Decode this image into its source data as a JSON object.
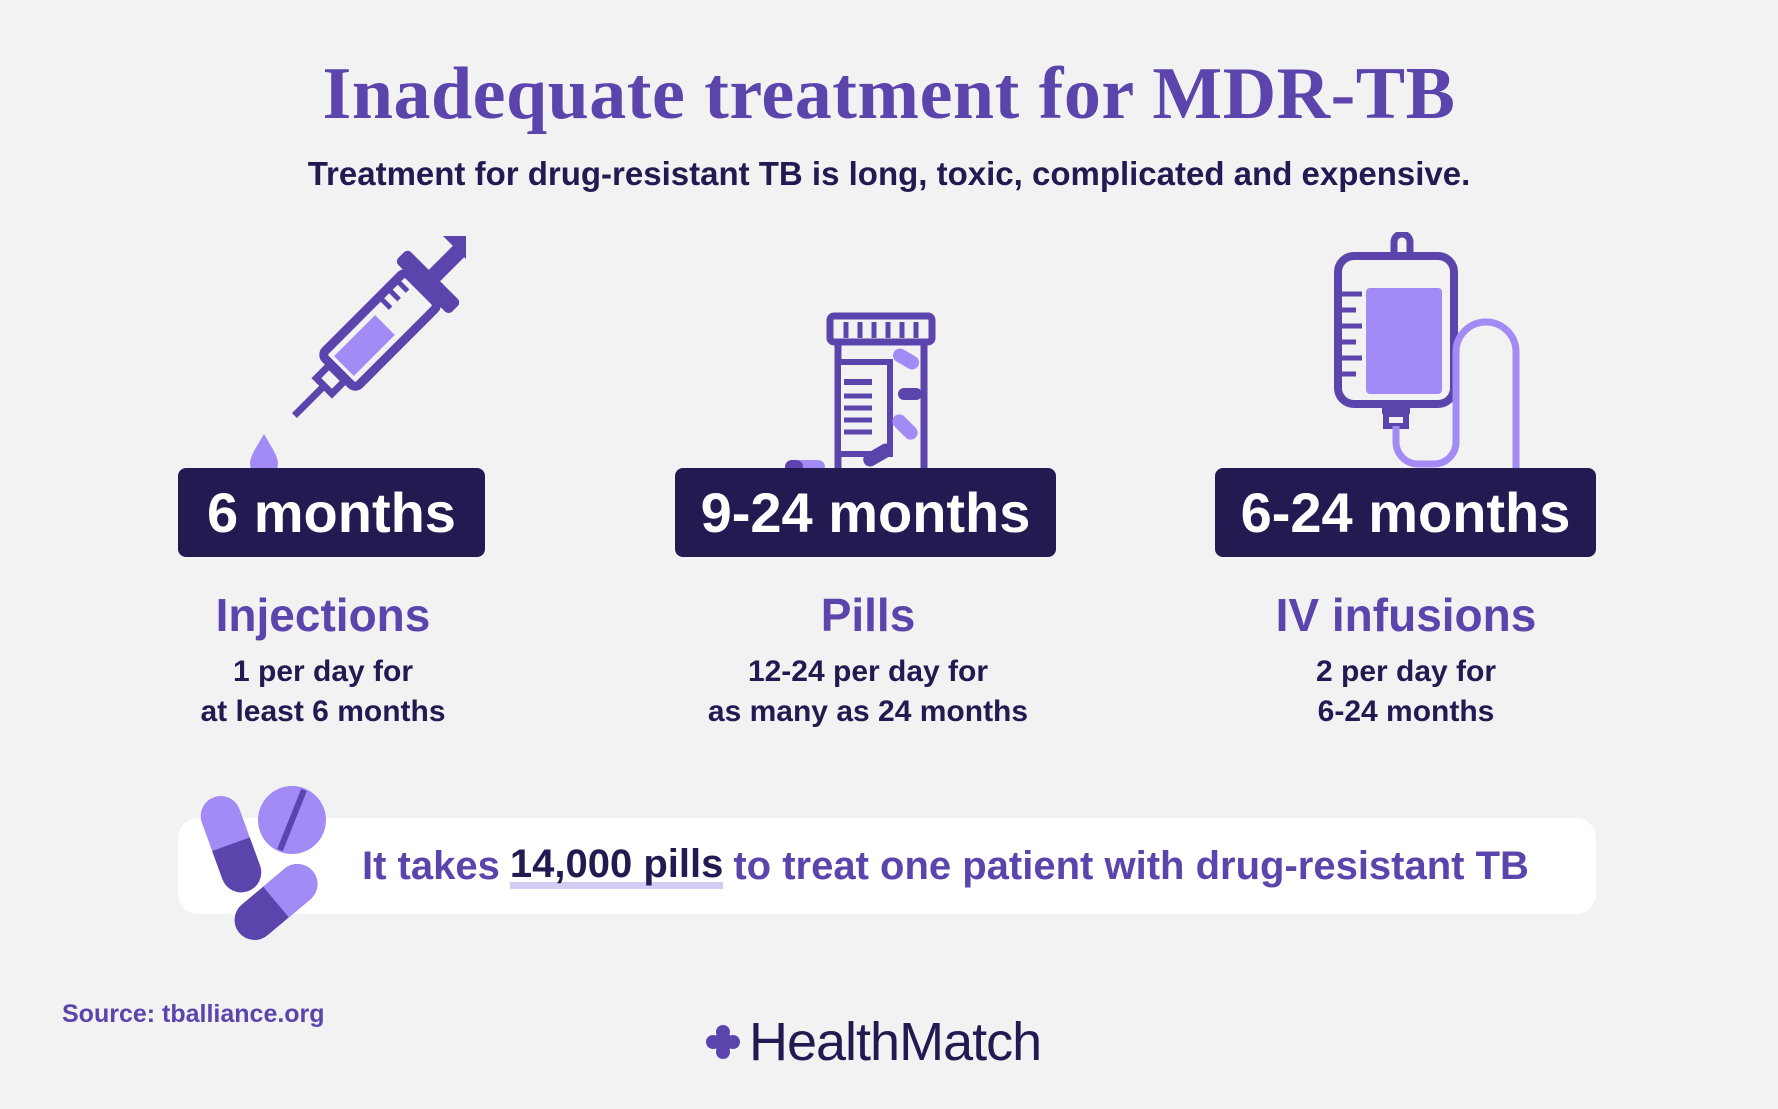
{
  "header": {
    "title": "Inadequate treatment for MDR-TB",
    "subtitle": "Treatment for drug-resistant TB is long, toxic, complicated and expensive."
  },
  "treatments": [
    {
      "icon": "syringe-icon",
      "duration": "6 months",
      "name": "Injections",
      "desc_line1": "1 per day for",
      "desc_line2": "at least 6 months"
    },
    {
      "icon": "pill-bottle-icon",
      "duration": "9-24 months",
      "name": "Pills",
      "desc_line1": "12-24 per day for",
      "desc_line2": "as many as 24 months"
    },
    {
      "icon": "iv-bag-icon",
      "duration": "6-24 months",
      "name": "IV infusions",
      "desc_line1": "2 per day for",
      "desc_line2": "6-24 months"
    }
  ],
  "banner": {
    "icon": "pills-icon",
    "text_before": "It takes",
    "highlight": "14,000 pills",
    "text_after": "to treat one patient with drug-resistant TB"
  },
  "footer": {
    "source": "Source: tballiance.org",
    "logo_text": "HealthMatch",
    "logo_icon": "healthmatch-cross-icon"
  },
  "colors": {
    "primary": "#5b45ad",
    "dark": "#231a52",
    "light_purple": "#a38bf6",
    "background": "#f2f2f2"
  }
}
